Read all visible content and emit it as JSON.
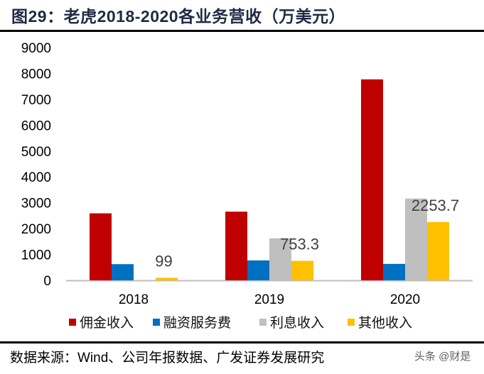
{
  "title": "图29：老虎2018-2020各业务营收（万美元）",
  "source": "数据来源：Wind、公司年报数据、广发证券发展研究",
  "watermark": "头条 @财是",
  "chart_data": {
    "type": "bar",
    "title": "",
    "xlabel": "",
    "ylabel": "",
    "ylim": [
      0,
      9000
    ],
    "yticks": [
      "0",
      "1000",
      "2000",
      "3000",
      "4000",
      "5000",
      "6000",
      "7000",
      "8000",
      "9000"
    ],
    "grid": false,
    "legend_position": "bottom",
    "categories": [
      "2018",
      "2019",
      "2020"
    ],
    "series": [
      {
        "name": "佣金收入",
        "color": "#C00000",
        "values": [
          2590,
          2655,
          7770
        ]
      },
      {
        "name": "融资服务费",
        "color": "#0070C0",
        "values": [
          625,
          770,
          635
        ]
      },
      {
        "name": "利息收入",
        "color": "#BFBFBF",
        "values": [
          0,
          1625,
          3160
        ]
      },
      {
        "name": "其他收入",
        "color": "#FFC000",
        "values": [
          99,
          753.3,
          2253.7
        ],
        "data_labels": [
          "99",
          "753.3",
          "2253.7"
        ]
      }
    ]
  }
}
